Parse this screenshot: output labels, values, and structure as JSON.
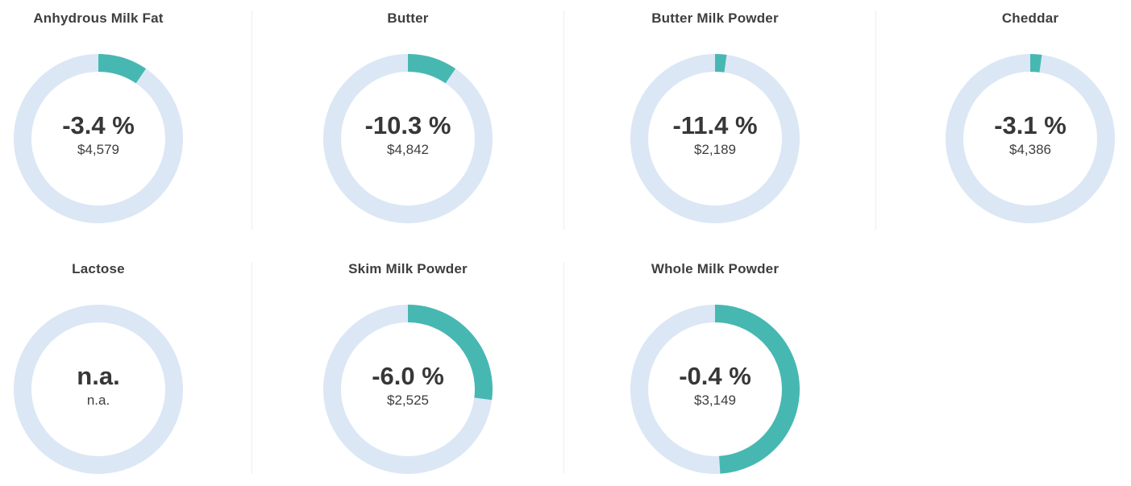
{
  "colors": {
    "arc": "#47b8b1",
    "ring": "#dbe7f5",
    "title": "#3e3e3e",
    "percent": "#373737",
    "value": "#3e3e3e",
    "divider": "#ededed"
  },
  "charts": [
    {
      "title": "Anhydrous Milk Fat",
      "percent": "-3.4 %",
      "value": "$4,579",
      "fraction": 0.095
    },
    {
      "title": "Butter",
      "percent": "-10.3 %",
      "value": "$4,842",
      "fraction": 0.095
    },
    {
      "title": "Butter Milk Powder",
      "percent": "-11.4 %",
      "value": "$2,189",
      "fraction": 0.022
    },
    {
      "title": "Cheddar",
      "percent": "-3.1 %",
      "value": "$4,386",
      "fraction": 0.022
    },
    {
      "title": "Lactose",
      "percent": "n.a.",
      "value": "n.a.",
      "fraction": 0
    },
    {
      "title": "Skim Milk Powder",
      "percent": "-6.0 %",
      "value": "$2,525",
      "fraction": 0.27
    },
    {
      "title": "Whole Milk Powder",
      "percent": "-0.4 %",
      "value": "$3,149",
      "fraction": 0.49
    }
  ],
  "chart_data": [
    {
      "type": "pie",
      "title": "Anhydrous Milk Fat",
      "center_label": "-3.4 %",
      "center_sublabel": "$4,579",
      "values": [
        9.5,
        90.5
      ],
      "legend": "none"
    },
    {
      "type": "pie",
      "title": "Butter",
      "center_label": "-10.3 %",
      "center_sublabel": "$4,842",
      "values": [
        9.5,
        90.5
      ],
      "legend": "none"
    },
    {
      "type": "pie",
      "title": "Butter Milk Powder",
      "center_label": "-11.4 %",
      "center_sublabel": "$2,189",
      "values": [
        2.2,
        97.8
      ],
      "legend": "none"
    },
    {
      "type": "pie",
      "title": "Cheddar",
      "center_label": "-3.1 %",
      "center_sublabel": "$4,386",
      "values": [
        2.2,
        97.8
      ],
      "legend": "none"
    },
    {
      "type": "pie",
      "title": "Lactose",
      "center_label": "n.a.",
      "center_sublabel": "n.a.",
      "values": [
        0,
        100
      ],
      "legend": "none"
    },
    {
      "type": "pie",
      "title": "Skim Milk Powder",
      "center_label": "-6.0 %",
      "center_sublabel": "$2,525",
      "values": [
        27,
        73
      ],
      "legend": "none"
    },
    {
      "type": "pie",
      "title": "Whole Milk Powder",
      "center_label": "-0.4 %",
      "center_sublabel": "$3,149",
      "values": [
        49,
        51
      ],
      "legend": "none"
    }
  ]
}
